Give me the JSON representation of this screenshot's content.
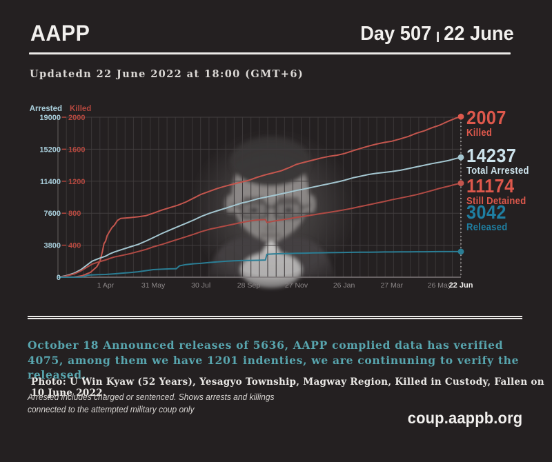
{
  "header": {
    "brand": "AAPP",
    "day_label": "Day 507",
    "separator": "|",
    "date_label": "22 June"
  },
  "updated_text": "Updatedn 22 June 2022 at 18:00 (GMT+6)",
  "chart_data": {
    "type": "line",
    "x_max_day": 506,
    "gridlines": true,
    "arrested_axis": {
      "title": "Arrested",
      "color": "#a9cedb",
      "max": 19000,
      "ticks": [
        0,
        3800,
        7600,
        11400,
        15200,
        19000
      ]
    },
    "killed_axis": {
      "title": "Killed",
      "color": "#b5483f",
      "max": 2000,
      "ticks": [
        400,
        800,
        1200,
        1600,
        2000
      ]
    },
    "x_ticks": [
      {
        "label": "1 Apr",
        "day": 59
      },
      {
        "label": "31 May",
        "day": 119
      },
      {
        "label": "30 Jul",
        "day": 179
      },
      {
        "label": "28 Sep",
        "day": 239
      },
      {
        "label": "27 Nov",
        "day": 299
      },
      {
        "label": "26 Jan",
        "day": 359
      },
      {
        "label": "27 Mar",
        "day": 419
      },
      {
        "label": "26 May",
        "day": 479
      },
      {
        "label": "22 Jun",
        "day": 506,
        "bold": true
      }
    ],
    "series": [
      {
        "name": "Killed",
        "axis": "killed",
        "color": "#c4564e",
        "points": [
          [
            0,
            0
          ],
          [
            20,
            3
          ],
          [
            30,
            20
          ],
          [
            40,
            60
          ],
          [
            48,
            130
          ],
          [
            52,
            200
          ],
          [
            55,
            320
          ],
          [
            57,
            420
          ],
          [
            59,
            450
          ],
          [
            61,
            520
          ],
          [
            64,
            570
          ],
          [
            67,
            620
          ],
          [
            70,
            650
          ],
          [
            74,
            710
          ],
          [
            78,
            735
          ],
          [
            90,
            745
          ],
          [
            100,
            755
          ],
          [
            110,
            770
          ],
          [
            119,
            800
          ],
          [
            130,
            840
          ],
          [
            140,
            870
          ],
          [
            150,
            900
          ],
          [
            160,
            940
          ],
          [
            170,
            990
          ],
          [
            179,
            1035
          ],
          [
            190,
            1075
          ],
          [
            200,
            1110
          ],
          [
            210,
            1140
          ],
          [
            220,
            1165
          ],
          [
            230,
            1190
          ],
          [
            239,
            1210
          ],
          [
            250,
            1250
          ],
          [
            260,
            1280
          ],
          [
            270,
            1305
          ],
          [
            280,
            1330
          ],
          [
            290,
            1370
          ],
          [
            299,
            1410
          ],
          [
            310,
            1440
          ],
          [
            320,
            1465
          ],
          [
            330,
            1490
          ],
          [
            340,
            1510
          ],
          [
            350,
            1525
          ],
          [
            359,
            1545
          ],
          [
            370,
            1580
          ],
          [
            380,
            1610
          ],
          [
            390,
            1640
          ],
          [
            400,
            1665
          ],
          [
            410,
            1685
          ],
          [
            419,
            1700
          ],
          [
            430,
            1730
          ],
          [
            440,
            1760
          ],
          [
            450,
            1800
          ],
          [
            460,
            1830
          ],
          [
            470,
            1870
          ],
          [
            479,
            1900
          ],
          [
            490,
            1950
          ],
          [
            500,
            1990
          ],
          [
            506,
            2007
          ]
        ]
      },
      {
        "name": "Total Arrested",
        "axis": "arrested",
        "color": "#a4c6d0",
        "points": [
          [
            0,
            0
          ],
          [
            10,
            200
          ],
          [
            20,
            500
          ],
          [
            28,
            900
          ],
          [
            35,
            1400
          ],
          [
            42,
            1900
          ],
          [
            50,
            2200
          ],
          [
            59,
            2500
          ],
          [
            65,
            2800
          ],
          [
            70,
            3000
          ],
          [
            80,
            3300
          ],
          [
            90,
            3600
          ],
          [
            100,
            3900
          ],
          [
            110,
            4300
          ],
          [
            119,
            4700
          ],
          [
            130,
            5200
          ],
          [
            140,
            5600
          ],
          [
            150,
            6000
          ],
          [
            160,
            6400
          ],
          [
            170,
            6800
          ],
          [
            179,
            7200
          ],
          [
            190,
            7600
          ],
          [
            200,
            7900
          ],
          [
            210,
            8200
          ],
          [
            220,
            8500
          ],
          [
            230,
            8800
          ],
          [
            239,
            9000
          ],
          [
            250,
            9300
          ],
          [
            260,
            9500
          ],
          [
            270,
            9700
          ],
          [
            280,
            9900
          ],
          [
            290,
            10100
          ],
          [
            299,
            10300
          ],
          [
            310,
            10500
          ],
          [
            320,
            10700
          ],
          [
            330,
            10900
          ],
          [
            340,
            11100
          ],
          [
            350,
            11300
          ],
          [
            359,
            11500
          ],
          [
            370,
            11800
          ],
          [
            380,
            12000
          ],
          [
            390,
            12200
          ],
          [
            400,
            12350
          ],
          [
            410,
            12450
          ],
          [
            419,
            12550
          ],
          [
            430,
            12700
          ],
          [
            440,
            12900
          ],
          [
            450,
            13100
          ],
          [
            460,
            13300
          ],
          [
            470,
            13500
          ],
          [
            479,
            13650
          ],
          [
            490,
            13850
          ],
          [
            500,
            14100
          ],
          [
            506,
            14237
          ]
        ]
      },
      {
        "name": "Still Detained",
        "axis": "arrested",
        "color": "#b04a44",
        "points": [
          [
            0,
            0
          ],
          [
            10,
            150
          ],
          [
            20,
            400
          ],
          [
            28,
            750
          ],
          [
            35,
            1150
          ],
          [
            42,
            1550
          ],
          [
            50,
            1800
          ],
          [
            59,
            2050
          ],
          [
            65,
            2250
          ],
          [
            70,
            2400
          ],
          [
            80,
            2600
          ],
          [
            90,
            2800
          ],
          [
            100,
            3050
          ],
          [
            110,
            3300
          ],
          [
            119,
            3600
          ],
          [
            130,
            3900
          ],
          [
            140,
            4200
          ],
          [
            150,
            4500
          ],
          [
            160,
            4800
          ],
          [
            170,
            5100
          ],
          [
            179,
            5400
          ],
          [
            190,
            5700
          ],
          [
            200,
            5900
          ],
          [
            210,
            6100
          ],
          [
            220,
            6300
          ],
          [
            230,
            6500
          ],
          [
            239,
            6650
          ],
          [
            250,
            6800
          ],
          [
            260,
            6850
          ],
          [
            262,
            6500
          ],
          [
            270,
            6650
          ],
          [
            280,
            6800
          ],
          [
            290,
            6950
          ],
          [
            299,
            7100
          ],
          [
            310,
            7250
          ],
          [
            320,
            7400
          ],
          [
            330,
            7550
          ],
          [
            340,
            7700
          ],
          [
            350,
            7850
          ],
          [
            359,
            8000
          ],
          [
            370,
            8200
          ],
          [
            380,
            8400
          ],
          [
            390,
            8600
          ],
          [
            400,
            8800
          ],
          [
            410,
            9000
          ],
          [
            419,
            9200
          ],
          [
            430,
            9400
          ],
          [
            440,
            9600
          ],
          [
            450,
            9800
          ],
          [
            460,
            10050
          ],
          [
            470,
            10300
          ],
          [
            479,
            10550
          ],
          [
            490,
            10800
          ],
          [
            500,
            11050
          ],
          [
            506,
            11174
          ]
        ]
      },
      {
        "name": "Released",
        "axis": "arrested",
        "color": "#2b7e95",
        "points": [
          [
            0,
            0
          ],
          [
            25,
            10
          ],
          [
            30,
            30
          ],
          [
            33,
            120
          ],
          [
            36,
            230
          ],
          [
            40,
            260
          ],
          [
            50,
            300
          ],
          [
            59,
            330
          ],
          [
            70,
            400
          ],
          [
            80,
            480
          ],
          [
            90,
            560
          ],
          [
            100,
            650
          ],
          [
            110,
            780
          ],
          [
            119,
            900
          ],
          [
            130,
            950
          ],
          [
            140,
            990
          ],
          [
            148,
            1010
          ],
          [
            152,
            1350
          ],
          [
            160,
            1500
          ],
          [
            170,
            1600
          ],
          [
            179,
            1650
          ],
          [
            190,
            1750
          ],
          [
            200,
            1830
          ],
          [
            210,
            1890
          ],
          [
            220,
            1940
          ],
          [
            230,
            1970
          ],
          [
            239,
            1990
          ],
          [
            250,
            2010
          ],
          [
            256,
            2020
          ],
          [
            260,
            2040
          ],
          [
            262,
            2720
          ],
          [
            270,
            2760
          ],
          [
            280,
            2790
          ],
          [
            290,
            2820
          ],
          [
            299,
            2840
          ],
          [
            310,
            2860
          ],
          [
            320,
            2880
          ],
          [
            330,
            2900
          ],
          [
            340,
            2915
          ],
          [
            350,
            2930
          ],
          [
            359,
            2940
          ],
          [
            370,
            2955
          ],
          [
            380,
            2965
          ],
          [
            390,
            2975
          ],
          [
            400,
            2985
          ],
          [
            410,
            2995
          ],
          [
            419,
            3000
          ],
          [
            430,
            3010
          ],
          [
            440,
            3015
          ],
          [
            450,
            3020
          ],
          [
            460,
            3025
          ],
          [
            470,
            3030
          ],
          [
            479,
            3035
          ],
          [
            490,
            3040
          ],
          [
            500,
            3041
          ],
          [
            506,
            3042
          ]
        ]
      }
    ],
    "annotations": [
      {
        "value": "2007",
        "label": "Killed",
        "color": "#de584c",
        "dot_color": "#de584c",
        "axis": "killed",
        "dot_value": 2007
      },
      {
        "value": "14237",
        "label": "Total Arrested",
        "color": "#cde3ec",
        "dot_color": "#a4c6d0",
        "axis": "arrested",
        "dot_value": 14237
      },
      {
        "value": "11174",
        "label": "Still Detained",
        "color": "#de584c",
        "dot_color": "#c4564e",
        "axis": "arrested",
        "dot_value": 11174
      },
      {
        "value": "3042",
        "label": "Released",
        "color": "#1f7fa2",
        "dot_color": "#2b7e95",
        "axis": "arrested",
        "dot_value": 3042
      }
    ]
  },
  "release_note": "October 18 Announced releases of 5636, AAPP complied data has verified 4075, among them we have 1201 indenties, we are continuning to verify the released.",
  "photo_caption": "Photo:  U Win Kyaw (52 Years), Yesagyo Township, Magway Region, Killed in Custody, Fallen on 10 June 2022.",
  "disclaimer": {
    "line1": "Arrested includes charged or sentenced. Shows arrests and killings",
    "line2": "connected to the attempted military coup only"
  },
  "website": "coup.aappb.org"
}
